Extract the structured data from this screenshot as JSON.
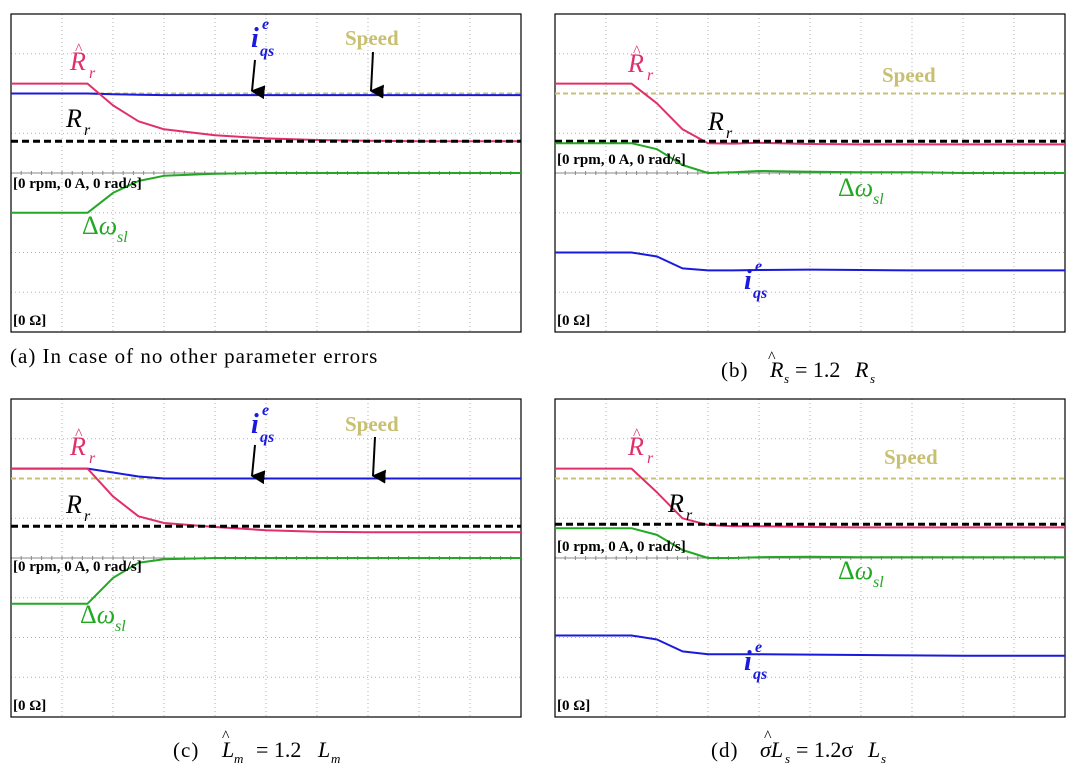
{
  "chart_data": [
    {
      "type": "line",
      "caption": "(a) In case of no other parameter errors",
      "prefix_label": "[0 rpm, 0 A, 0 rad/s]",
      "ohm_label": "[0 Ω]",
      "annotations": [
        "Speed"
      ],
      "x": [
        0,
        1.5,
        2.0,
        2.5,
        3.0,
        4.0,
        5.0,
        6.0,
        7.0,
        8.0,
        10.0
      ],
      "series": [
        {
          "id": "speed",
          "color": "#c8c070",
          "dash": true,
          "values": [
            2.0,
            2.0,
            2.0,
            2.0,
            2.0,
            2.0,
            2.0,
            2.0,
            2.0,
            2.0,
            2.0
          ]
        },
        {
          "id": "iqs",
          "color": "#1a1adc",
          "values": [
            2.0,
            2.0,
            1.98,
            1.97,
            1.96,
            1.96,
            1.96,
            1.96,
            1.96,
            1.96,
            1.96
          ]
        },
        {
          "id": "rr_hat",
          "color": "#e0306a",
          "values": [
            2.25,
            2.25,
            1.7,
            1.3,
            1.1,
            0.95,
            0.87,
            0.83,
            0.81,
            0.8,
            0.8
          ]
        },
        {
          "id": "rr",
          "color": "#000000",
          "dash": true,
          "width": 3,
          "values": [
            0.8,
            0.8,
            0.8,
            0.8,
            0.8,
            0.8,
            0.8,
            0.8,
            0.8,
            0.8,
            0.8
          ]
        },
        {
          "id": "dw",
          "color": "#22a822",
          "values": [
            -1.0,
            -1.0,
            -0.5,
            -0.2,
            -0.07,
            -0.02,
            0.0,
            0.0,
            0.0,
            0.0,
            0.0
          ]
        }
      ]
    },
    {
      "type": "line",
      "caption": "(b)",
      "prefix_label": "[0 rpm, 0 A, 0 rad/s]",
      "ohm_label": "[0 Ω]",
      "annotations": [
        "Speed"
      ],
      "x": [
        0,
        1.5,
        2.0,
        2.5,
        3.0,
        3.5,
        4.0,
        5.0,
        6.0,
        7.0,
        8.0,
        10.0
      ],
      "series": [
        {
          "id": "speed",
          "color": "#c8c070",
          "dash": true,
          "values": [
            2.0,
            2.0,
            2.0,
            2.0,
            2.0,
            2.0,
            2.0,
            2.0,
            2.0,
            2.0,
            2.0,
            2.0
          ]
        },
        {
          "id": "rr_hat",
          "color": "#e0306a",
          "values": [
            2.25,
            2.25,
            1.75,
            1.1,
            0.75,
            0.74,
            0.76,
            0.73,
            0.72,
            0.72,
            0.72,
            0.72
          ]
        },
        {
          "id": "rr",
          "color": "#000000",
          "dash": true,
          "width": 3,
          "values": [
            0.8,
            0.8,
            0.8,
            0.8,
            0.8,
            0.8,
            0.8,
            0.8,
            0.8,
            0.8,
            0.8,
            0.8
          ]
        },
        {
          "id": "dw",
          "color": "#22a822",
          "values": [
            0.75,
            0.75,
            0.6,
            0.2,
            0.0,
            0.02,
            0.05,
            0.03,
            0.02,
            0.02,
            0.0,
            0.0
          ]
        },
        {
          "id": "iqs",
          "color": "#1a1adc",
          "values": [
            -2.0,
            -2.0,
            -2.1,
            -2.4,
            -2.45,
            -2.45,
            -2.44,
            -2.43,
            -2.44,
            -2.45,
            -2.45,
            -2.45
          ]
        }
      ]
    },
    {
      "type": "line",
      "caption": "(c)",
      "prefix_label": "[0 rpm, 0 A, 0 rad/s]",
      "ohm_label": "[0 Ω]",
      "annotations": [
        "Speed"
      ],
      "x": [
        0,
        1.5,
        2.0,
        2.5,
        3.0,
        4.0,
        5.0,
        6.0,
        7.0,
        8.0,
        10.0
      ],
      "series": [
        {
          "id": "speed",
          "color": "#c8c070",
          "dash": true,
          "values": [
            2.0,
            2.0,
            2.0,
            2.0,
            2.0,
            2.0,
            2.0,
            2.0,
            2.0,
            2.0,
            2.0
          ]
        },
        {
          "id": "iqs",
          "color": "#1a1adc",
          "values": [
            2.25,
            2.25,
            2.15,
            2.05,
            2.0,
            2.0,
            2.0,
            2.0,
            2.0,
            2.0,
            2.0
          ]
        },
        {
          "id": "rr_hat",
          "color": "#e0306a",
          "values": [
            2.25,
            2.25,
            1.55,
            1.05,
            0.88,
            0.78,
            0.7,
            0.66,
            0.65,
            0.65,
            0.65
          ]
        },
        {
          "id": "rr",
          "color": "#000000",
          "dash": true,
          "width": 3,
          "values": [
            0.8,
            0.8,
            0.8,
            0.8,
            0.8,
            0.8,
            0.8,
            0.8,
            0.8,
            0.8,
            0.8
          ]
        },
        {
          "id": "dw",
          "color": "#22a822",
          "values": [
            -1.15,
            -1.15,
            -0.5,
            -0.12,
            -0.03,
            0.0,
            0.0,
            0.0,
            0.0,
            0.0,
            0.0
          ]
        }
      ]
    },
    {
      "type": "line",
      "caption": "(d)",
      "prefix_label": "[0 rpm, 0 A, 0 rad/s]",
      "ohm_label": "[0 Ω]",
      "annotations": [
        "Speed"
      ],
      "x": [
        0,
        1.5,
        2.0,
        2.5,
        3.0,
        3.5,
        4.0,
        5.0,
        6.0,
        7.0,
        8.0,
        10.0
      ],
      "series": [
        {
          "id": "speed",
          "color": "#c8c070",
          "dash": true,
          "values": [
            2.0,
            2.0,
            2.0,
            2.0,
            2.0,
            2.0,
            2.0,
            2.0,
            2.0,
            2.0,
            2.0,
            2.0
          ]
        },
        {
          "id": "rr_hat",
          "color": "#e0306a",
          "values": [
            2.25,
            2.25,
            1.65,
            1.0,
            0.83,
            0.8,
            0.8,
            0.78,
            0.77,
            0.77,
            0.77,
            0.77
          ]
        },
        {
          "id": "rr",
          "color": "#000000",
          "dash": true,
          "width": 3,
          "values": [
            0.85,
            0.85,
            0.85,
            0.85,
            0.85,
            0.85,
            0.85,
            0.85,
            0.85,
            0.85,
            0.85,
            0.85
          ]
        },
        {
          "id": "dw",
          "color": "#22a822",
          "values": [
            0.75,
            0.75,
            0.58,
            0.2,
            0.0,
            0.0,
            0.02,
            0.03,
            0.02,
            0.02,
            0.02,
            0.02
          ]
        },
        {
          "id": "iqs",
          "color": "#1a1adc",
          "values": [
            -1.95,
            -1.95,
            -2.05,
            -2.35,
            -2.42,
            -2.42,
            -2.42,
            -2.43,
            -2.44,
            -2.45,
            -2.46,
            -2.46
          ]
        }
      ]
    }
  ]
}
